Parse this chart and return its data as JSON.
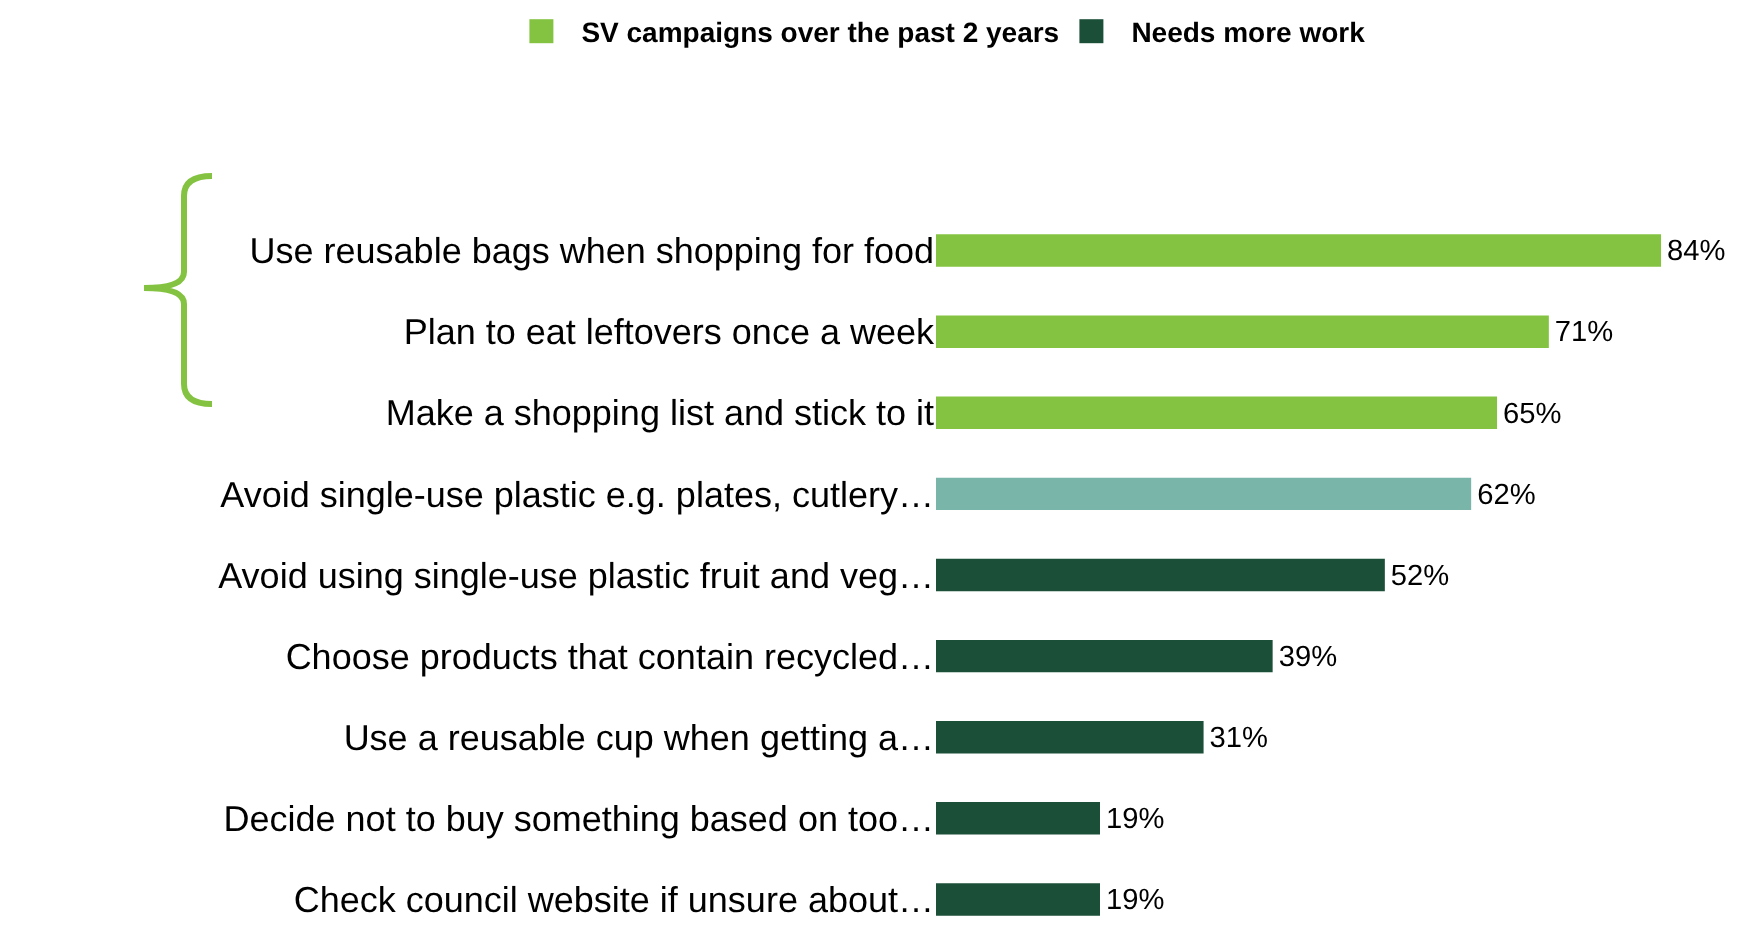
{
  "chart_data": {
    "type": "bar",
    "orientation": "horizontal",
    "categories": [
      "Use reusable bags when shopping for food",
      "Plan to eat leftovers once a week",
      "Make a shopping list and stick to it",
      "Avoid single-use plastic e.g. plates, cutlery…",
      "Avoid using single-use plastic fruit and veg…",
      "Choose products that contain recycled…",
      "Use a reusable cup when getting a…",
      "Decide not to buy something based on too…",
      "Check council website if unsure about…"
    ],
    "series": [
      {
        "name": "SV campaigns over the past 2 years",
        "color": "#84c341",
        "values": [
          84,
          71,
          65,
          null,
          null,
          null,
          null,
          null,
          null
        ],
        "value_labels": [
          "84%",
          "71%",
          "65%",
          null,
          null,
          null,
          null,
          null,
          null
        ]
      },
      {
        "color": "#7ab5a9",
        "values": [
          null,
          null,
          null,
          62,
          null,
          null,
          null,
          null,
          null
        ],
        "value_labels": [
          null,
          null,
          null,
          "62%",
          null,
          null,
          null,
          null,
          null
        ]
      },
      {
        "name": "Needs more work",
        "color": "#1b4f38",
        "values": [
          null,
          null,
          null,
          null,
          52,
          39,
          31,
          19,
          19
        ],
        "value_labels": [
          null,
          null,
          null,
          null,
          "52%",
          "39%",
          "31%",
          "19%",
          "19%"
        ]
      }
    ],
    "xlim": [
      0,
      95
    ],
    "tick_labels": "y",
    "grid": false,
    "legend": "top left"
  }
}
